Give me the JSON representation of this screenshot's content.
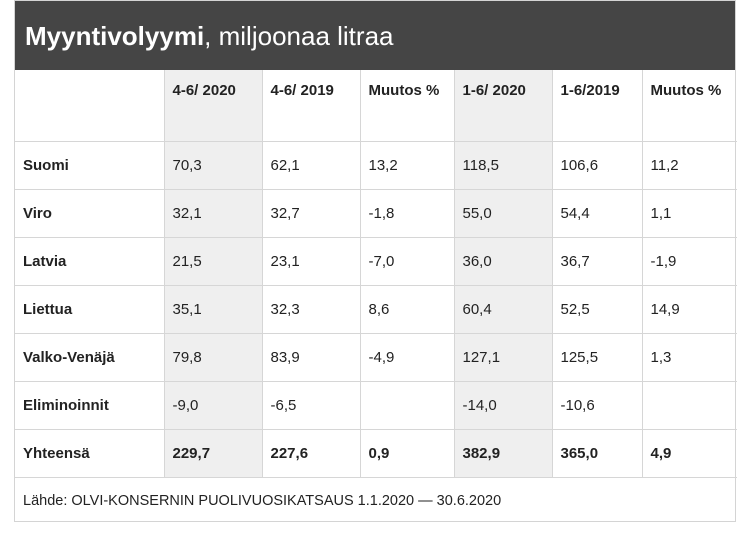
{
  "title": {
    "bold": "Myyntivolyymi",
    "rest": ", miljoonaa litraa"
  },
  "columns": [
    "",
    "4-6/ 2020",
    "4-6/ 2019",
    "Muutos %",
    "1-6/ 2020",
    "1-6/2019",
    "Muutos %"
  ],
  "rows": [
    {
      "label": "Suomi",
      "values": [
        "70,3",
        "62,1",
        "13,2",
        "118,5",
        "106,6",
        "11,2"
      ]
    },
    {
      "label": "Viro",
      "values": [
        "32,1",
        "32,7",
        "-1,8",
        "55,0",
        "54,4",
        "1,1"
      ]
    },
    {
      "label": "Latvia",
      "values": [
        "21,5",
        "23,1",
        "-7,0",
        "36,0",
        "36,7",
        "-1,9"
      ]
    },
    {
      "label": "Liettua",
      "values": [
        "35,1",
        "32,3",
        "8,6",
        "60,4",
        "52,5",
        "14,9"
      ]
    },
    {
      "label": "Valko-Venäjä",
      "values": [
        "79,8",
        "83,9",
        "-4,9",
        "127,1",
        "125,5",
        "1,3"
      ]
    },
    {
      "label": "Eliminoinnit",
      "values": [
        "-9,0",
        "-6,5",
        "",
        "-14,0",
        "-10,6",
        ""
      ]
    },
    {
      "label": "Yhteensä",
      "values": [
        "229,7",
        "227,6",
        "0,9",
        "382,9",
        "365,0",
        "4,9"
      ]
    }
  ],
  "source": "Lähde: OLVI-KONSERNIN PUOLIVUOSIKATSAUS 1.1.2020 — 30.6.2020",
  "colors": {
    "header_bg": "#454545",
    "shaded_column_bg": "#efefef",
    "border": "#d6d6d6"
  }
}
